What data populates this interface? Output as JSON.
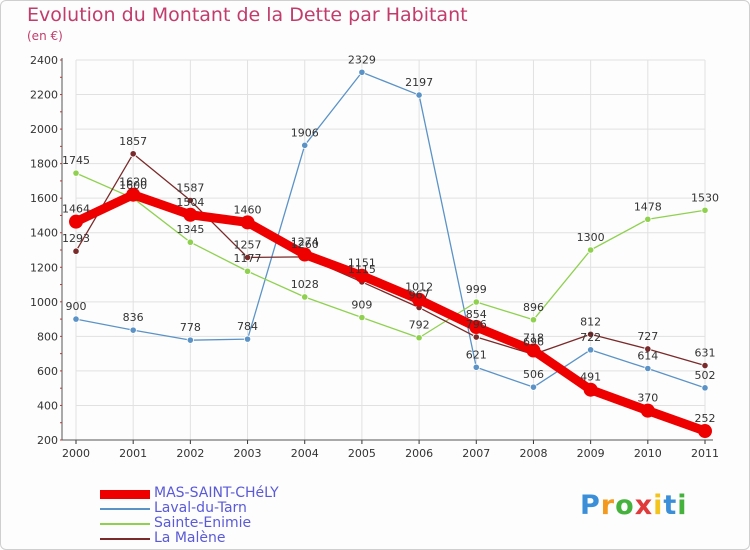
{
  "title": "Evolution du Montant de la Dette par Habitant",
  "subtitle": "(en €)",
  "logo_text": "Proxiti",
  "logo_colors": [
    "#3a8fd8",
    "#f39a1e",
    "#46b23e",
    "#e03a3a",
    "#f3c41e",
    "#3a8fd8",
    "#46b23e"
  ],
  "chart_data": {
    "type": "line",
    "title": "Evolution du Montant de la Dette par Habitant",
    "subtitle": "(en €)",
    "x": [
      "2000",
      "2001",
      "2002",
      "2003",
      "2004",
      "2005",
      "2006",
      "2007",
      "2008",
      "2009",
      "2010",
      "2011"
    ],
    "ylim": [
      200,
      2400
    ],
    "yticks": [
      200,
      400,
      600,
      800,
      1000,
      1200,
      1400,
      1600,
      1800,
      2000,
      2200,
      2400
    ],
    "grid": true,
    "legend_position": "bottom-left",
    "series": [
      {
        "name": "MAS-SAINT-CHéLY",
        "color": "#ee0000",
        "width": "thick",
        "values": [
          1464,
          1620,
          1504,
          1460,
          1274,
          1151,
          1012,
          854,
          718,
          491,
          370,
          252
        ],
        "labels": [
          "1464",
          "1620",
          "1504",
          "1460",
          "1274",
          "1151",
          "1012",
          "854",
          "718",
          "491",
          "370",
          "252"
        ]
      },
      {
        "name": "Laval-du-Tarn",
        "color": "#5b93c7",
        "width": "thin",
        "values": [
          900,
          836,
          778,
          784,
          1906,
          2329,
          2197,
          621,
          506,
          722,
          614,
          502
        ],
        "labels": [
          "900",
          "836",
          "778",
          "784",
          "1906",
          "2329",
          "2197",
          "621",
          "506",
          "722",
          "614",
          "502"
        ]
      },
      {
        "name": "Sainte-Enimie",
        "color": "#8fd14f",
        "width": "thin",
        "values": [
          1745,
          1600,
          1345,
          1177,
          1028,
          909,
          792,
          999,
          896,
          1300,
          1478,
          1530
        ],
        "labels": [
          "1745",
          "1600",
          "1345",
          "1177",
          "1028",
          "909",
          "792",
          "999",
          "896",
          "1300",
          "1478",
          "1530"
        ]
      },
      {
        "name": "La Malène",
        "color": "#7a2a2a",
        "width": "thin",
        "values": [
          1293,
          1857,
          1587,
          1257,
          1260,
          1115,
          967,
          796,
          696,
          812,
          727,
          631
        ],
        "labels": [
          "1293",
          "1857",
          "1587",
          "1257",
          "1260",
          "1115",
          "967",
          "796",
          "696",
          "812",
          "727",
          "631"
        ]
      }
    ]
  }
}
